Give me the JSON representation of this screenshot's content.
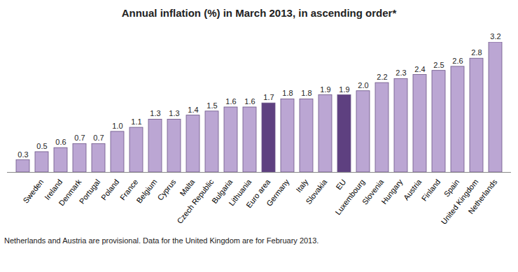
{
  "chart_data": {
    "type": "bar",
    "title": "Annual inflation (%) in March 2013, in ascending order*",
    "annotations": [
      "Netherlands and Austria are provisional. Data for the United Kingdom are for February 2013."
    ],
    "categories": [
      null,
      "Sweden",
      "Ireland",
      "Denmark",
      "Portugal",
      "Poland",
      "France",
      "Belgium",
      "Cyprus",
      "Malta",
      "Czech Republic",
      "Bulgaria",
      "Lithuania",
      "Euro area",
      "Germany",
      "Italy",
      "Slovakia",
      "EU",
      "Luxembourg",
      "Slovenia",
      "Hungary",
      "Austria",
      "Finland",
      "Spain",
      "United Kingdom",
      "Netherlands"
    ],
    "values": [
      0.3,
      0.5,
      0.6,
      0.7,
      0.7,
      1.0,
      1.1,
      1.3,
      1.3,
      1.4,
      1.5,
      1.6,
      1.6,
      1.7,
      1.8,
      1.8,
      1.9,
      1.9,
      2.0,
      2.2,
      2.3,
      2.4,
      2.5,
      2.6,
      2.8,
      3.2
    ],
    "value_labels": [
      "0.3",
      "0.5",
      "0.6",
      "0.7",
      "0.7",
      "1.0",
      "1.1",
      "1.3",
      "1.3",
      "1.4",
      "1.5",
      "1.6",
      "1.6",
      "1.7",
      "1.8",
      "1.8",
      "1.9",
      "1.9",
      "2.0",
      "2.2",
      "2.3",
      "2.4",
      "2.5",
      "2.6",
      "2.8",
      "3.2"
    ],
    "colors": [
      "#bba6d3",
      "#bba6d3",
      "#bba6d3",
      "#bba6d3",
      "#bba6d3",
      "#bba6d3",
      "#bba6d3",
      "#bba6d3",
      "#bba6d3",
      "#bba6d3",
      "#bba6d3",
      "#bba6d3",
      "#bba6d3",
      "#5e4080",
      "#bba6d3",
      "#bba6d3",
      "#bba6d3",
      "#5e4080",
      "#bba6d3",
      "#bba6d3",
      "#bba6d3",
      "#bba6d3",
      "#bba6d3",
      "#bba6d3",
      "#bba6d3",
      "#bba6d3"
    ],
    "data_labels": true,
    "tick_labels": "x",
    "grid": false
  }
}
